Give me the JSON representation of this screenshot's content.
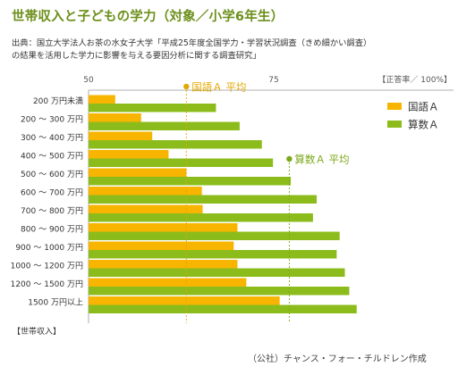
{
  "title": "世帯収入と子どもの学力（対象／小学6年生）",
  "source_lines": [
    "出典：国立大学法人お茶の水女子大学「平成25年度全国学力・学習状況調査（きめ細かい調査）",
    "の結果を活用した学力に影響を与える要因分析に関する調査研究」"
  ],
  "credit": "（公社）チャンス・フォー・チルドレン作成",
  "colors": {
    "kokugo": "#f7b500",
    "sansu": "#8cbc1b",
    "title": "#6c8f1a",
    "kokugo_avg_line": "#e0a800",
    "sansu_avg_line": "#7aa818",
    "axis": "#999999"
  },
  "chart_data": {
    "type": "bar",
    "orientation": "horizontal",
    "x_axis_label": "【正答率／ 100%】",
    "y_axis_label": "【世帯収入】",
    "xlim": [
      50,
      100
    ],
    "x_ticks": [
      50,
      75
    ],
    "x_tick_labels": [
      "50",
      "75"
    ],
    "categories": [
      "200 万円未満",
      "200 ～ 300 万円",
      "300 ～ 400 万円",
      "400 ～ 500 万円",
      "500 ～ 600 万円",
      "600 ～ 700 万円",
      "700 ～ 800 万円",
      "800 ～ 900 万円",
      "900 ～ 1000 万円",
      "1000 ～ 1200 万円",
      "1200 ～ 1500 万円",
      "1500 万円以上"
    ],
    "series": [
      {
        "name": "国語Ａ",
        "color": "#f7b500",
        "values": [
          53.6,
          57.1,
          58.6,
          60.8,
          63.2,
          65.3,
          65.4,
          70.1,
          69.6,
          70.1,
          71.3,
          75.8
        ]
      },
      {
        "name": "算数Ａ",
        "color": "#8cbc1b",
        "values": [
          67.2,
          70.4,
          73.4,
          74.9,
          77.3,
          80.8,
          80.3,
          83.9,
          83.5,
          84.6,
          85.2,
          86.2
        ]
      }
    ],
    "averages": [
      {
        "label": "国語Ａ 平均",
        "value": 63.2
      },
      {
        "label": "算数Ａ 平均",
        "value": 77.1
      }
    ],
    "legend_position": "top-right",
    "grid": false
  }
}
